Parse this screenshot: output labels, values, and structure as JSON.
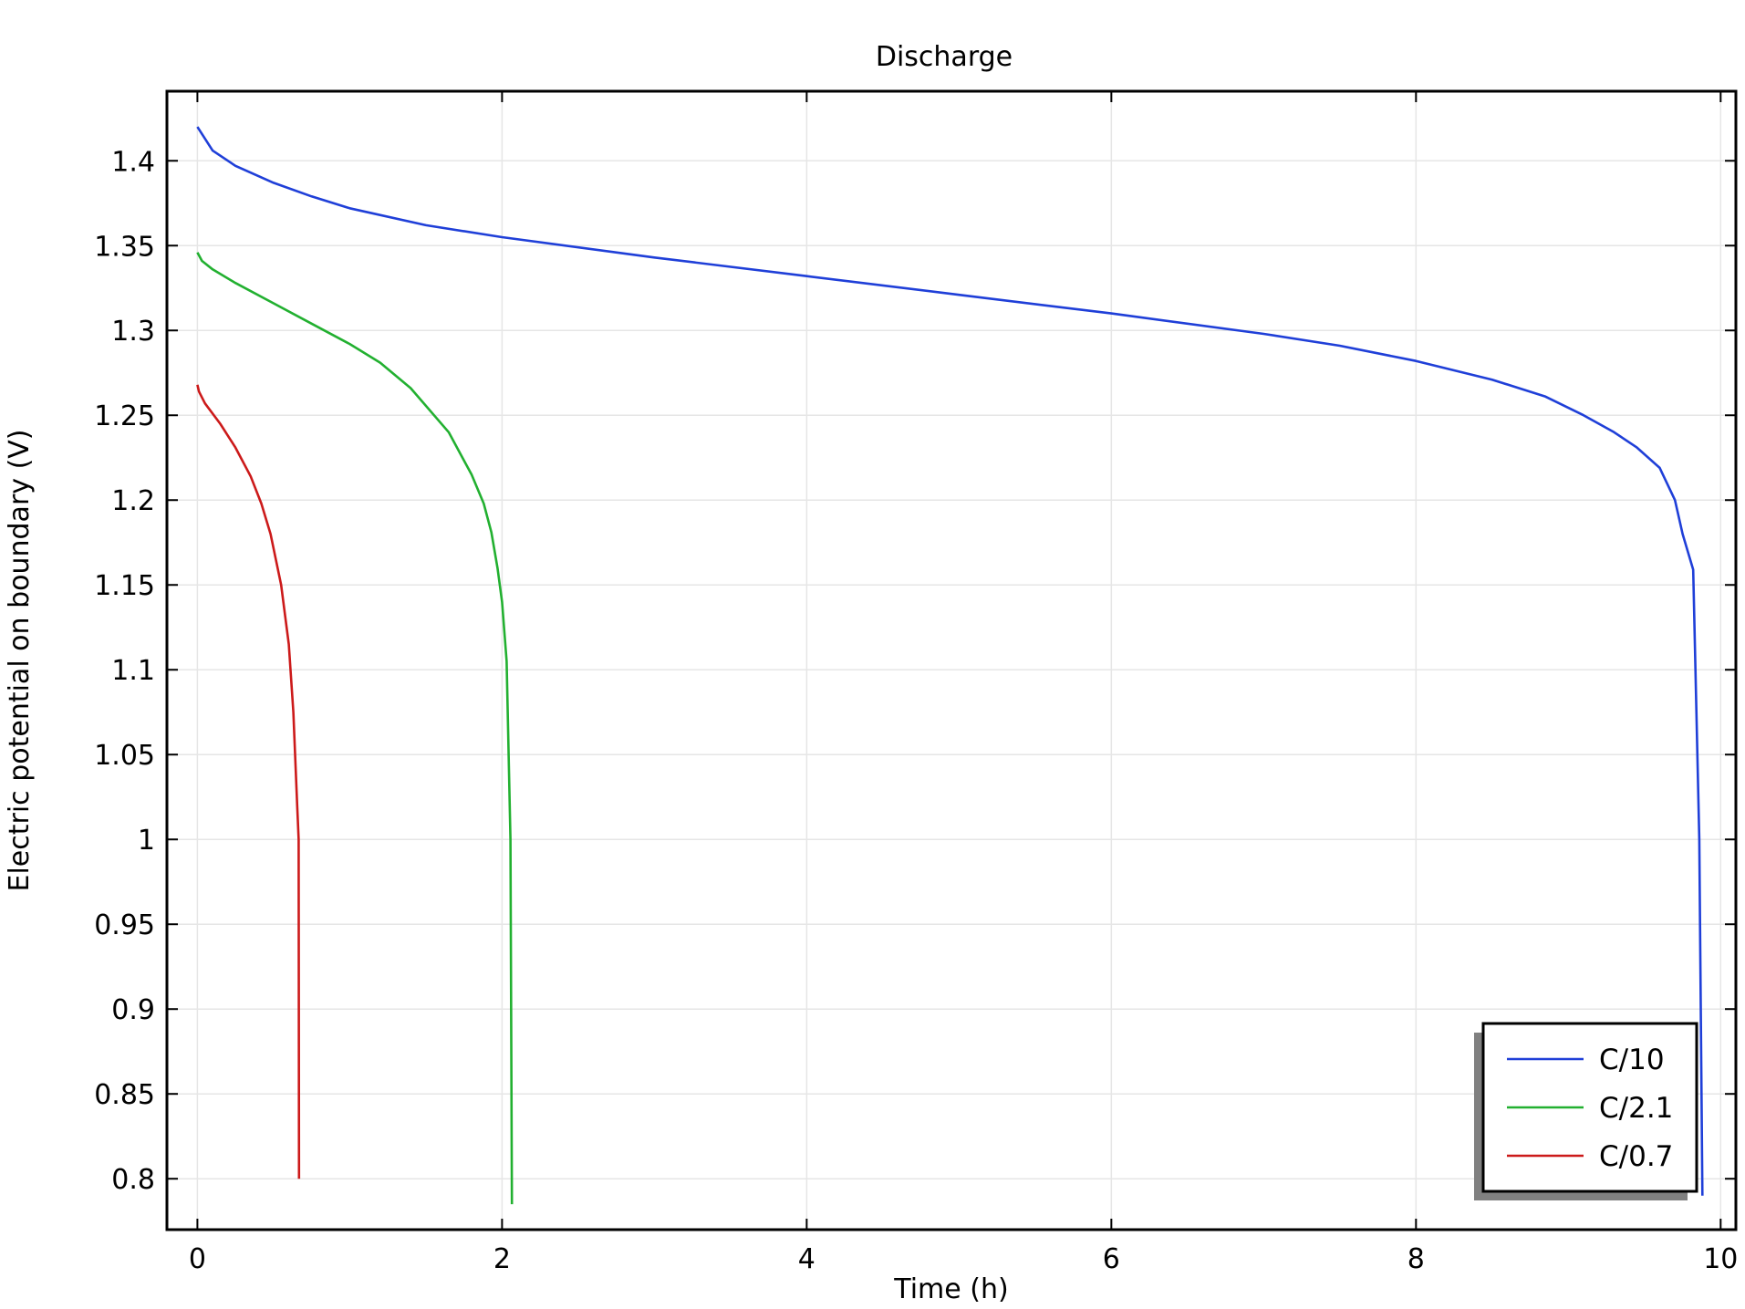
{
  "chart_data": {
    "type": "line",
    "title": "Discharge",
    "xlabel": "Time (h)",
    "ylabel": "Electric potential on boundary (V)",
    "xlim": [
      -0.2,
      10.1
    ],
    "ylim": [
      0.77,
      1.441
    ],
    "x_ticks": [
      0,
      2,
      4,
      6,
      8,
      10
    ],
    "y_ticks": [
      0.8,
      0.85,
      0.9,
      0.95,
      1,
      1.05,
      1.1,
      1.15,
      1.2,
      1.25,
      1.3,
      1.35,
      1.4
    ],
    "x_tick_labels": [
      "0",
      "2",
      "4",
      "6",
      "8",
      "10"
    ],
    "y_tick_labels": [
      "0.8",
      "0.85",
      "0.9",
      "0.95",
      "1",
      "1.05",
      "1.1",
      "1.15",
      "1.2",
      "1.25",
      "1.3",
      "1.35",
      "1.4"
    ],
    "grid": true,
    "legend_position": "bottom-right",
    "series": [
      {
        "name": "C/10",
        "color": "#1f3fd8",
        "points": [
          [
            0,
            1.42
          ],
          [
            0.1,
            1.406
          ],
          [
            0.25,
            1.397
          ],
          [
            0.5,
            1.387
          ],
          [
            0.75,
            1.379
          ],
          [
            1,
            1.372
          ],
          [
            1.5,
            1.362
          ],
          [
            2,
            1.355
          ],
          [
            3,
            1.343
          ],
          [
            4,
            1.332
          ],
          [
            5,
            1.321
          ],
          [
            6,
            1.31
          ],
          [
            7,
            1.298
          ],
          [
            7.5,
            1.291
          ],
          [
            8,
            1.282
          ],
          [
            8.5,
            1.271
          ],
          [
            8.85,
            1.261
          ],
          [
            9.1,
            1.25
          ],
          [
            9.3,
            1.24
          ],
          [
            9.45,
            1.231
          ],
          [
            9.6,
            1.219
          ],
          [
            9.7,
            1.2
          ],
          [
            9.75,
            1.18
          ],
          [
            9.82,
            1.159
          ],
          [
            9.86,
            1.0
          ],
          [
            9.88,
            0.79
          ]
        ]
      },
      {
        "name": "C/2.1",
        "color": "#22b030",
        "points": [
          [
            0,
            1.346
          ],
          [
            0.03,
            1.341
          ],
          [
            0.1,
            1.336
          ],
          [
            0.25,
            1.328
          ],
          [
            0.5,
            1.316
          ],
          [
            0.75,
            1.304
          ],
          [
            1,
            1.292
          ],
          [
            1.2,
            1.281
          ],
          [
            1.4,
            1.266
          ],
          [
            1.65,
            1.24
          ],
          [
            1.8,
            1.215
          ],
          [
            1.88,
            1.198
          ],
          [
            1.93,
            1.181
          ],
          [
            1.97,
            1.16
          ],
          [
            2.0,
            1.14
          ],
          [
            2.03,
            1.105
          ],
          [
            2.055,
            1.0
          ],
          [
            2.065,
            0.785
          ]
        ]
      },
      {
        "name": "C/0.7",
        "color": "#cc1a1a",
        "points": [
          [
            0,
            1.268
          ],
          [
            0.01,
            1.264
          ],
          [
            0.05,
            1.257
          ],
          [
            0.15,
            1.245
          ],
          [
            0.25,
            1.231
          ],
          [
            0.35,
            1.214
          ],
          [
            0.42,
            1.198
          ],
          [
            0.48,
            1.18
          ],
          [
            0.55,
            1.15
          ],
          [
            0.6,
            1.115
          ],
          [
            0.63,
            1.075
          ],
          [
            0.655,
            1.02
          ],
          [
            0.665,
            1.0
          ],
          [
            0.667,
            0.8
          ]
        ]
      }
    ]
  }
}
